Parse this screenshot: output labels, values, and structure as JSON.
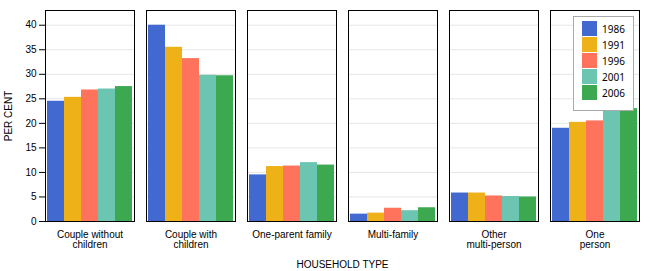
{
  "chart_data": {
    "type": "bar",
    "categories": [
      "Couple without\nchildren",
      "Couple with\nchildren",
      "One-parent family",
      "Multi-family",
      "Other\nmulti-person",
      "One\nperson"
    ],
    "series": [
      {
        "name": "1986",
        "values": [
          24.5,
          40.0,
          9.5,
          1.5,
          5.8,
          19.0
        ]
      },
      {
        "name": "1991",
        "values": [
          25.3,
          35.5,
          11.2,
          1.7,
          5.8,
          20.2
        ]
      },
      {
        "name": "1996",
        "values": [
          26.8,
          33.2,
          11.3,
          2.7,
          5.2,
          20.5
        ]
      },
      {
        "name": "2001",
        "values": [
          27.0,
          29.8,
          12.0,
          2.2,
          5.1,
          23.3
        ]
      },
      {
        "name": "2006",
        "values": [
          27.5,
          29.7,
          11.5,
          2.8,
          5.0,
          23.0
        ]
      }
    ],
    "xlabel": "HOUSEHOLD TYPE",
    "ylabel": "PER CENT",
    "ylim": [
      0,
      43
    ],
    "yticks": [
      0,
      5,
      10,
      15,
      20,
      25,
      30,
      35,
      40
    ],
    "grid": true,
    "legend": "upper right"
  }
}
